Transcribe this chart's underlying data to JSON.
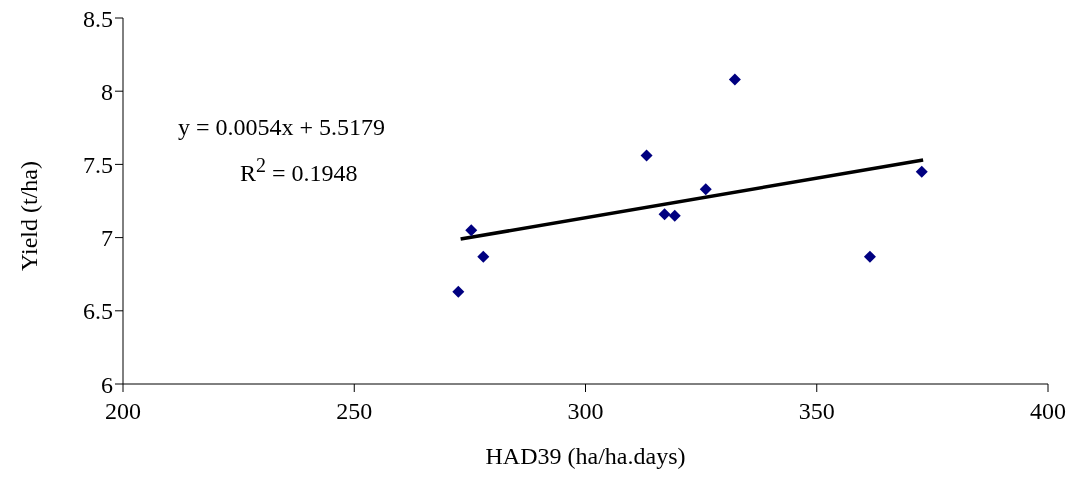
{
  "chart_data": {
    "type": "scatter",
    "xlabel": "HAD39 (ha/ha.days)",
    "ylabel": "Yield (t/ha)",
    "xlim": [
      200,
      400
    ],
    "xticks": [
      200,
      250,
      300,
      350,
      400
    ],
    "ylim": [
      6,
      8.5
    ],
    "yticks": [
      6,
      6.5,
      7,
      7.5,
      8,
      8.5
    ],
    "grid": false,
    "legend": false,
    "marker": "diamond",
    "annotations": [
      "y = 0.0054x + 5.5179",
      "R$^{2}$ = 0.1948"
    ],
    "series": [
      {
        "color": "#000080",
        "x": [
          272.5,
          275.3,
          277.9,
          313.2,
          317.1,
          319.3,
          326.0,
          332.3,
          361.5,
          372.7
        ],
        "values": [
          6.63,
          7.05,
          6.87,
          7.56,
          7.16,
          7.15,
          7.33,
          8.08,
          6.87,
          7.45
        ]
      },
      {
        "type": "line",
        "color": "#000000",
        "marker": "none",
        "line_style": "solid",
        "x": [
          273,
          373
        ],
        "values": [
          6.99,
          7.53
        ]
      }
    ]
  }
}
